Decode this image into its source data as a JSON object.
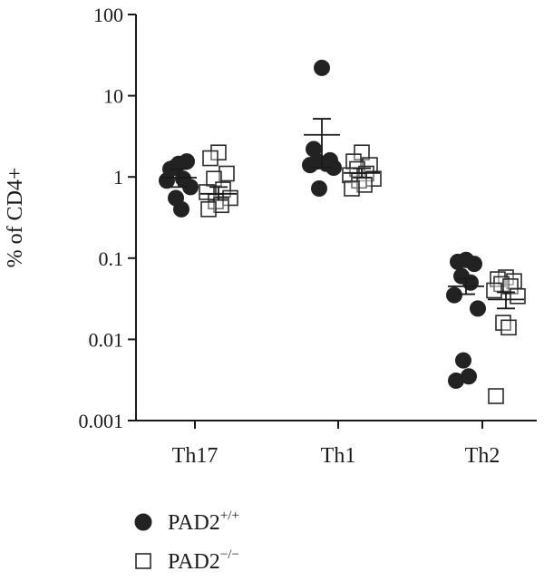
{
  "chart_data": {
    "type": "scatter",
    "y_scale": "log",
    "ylim": [
      0.001,
      100
    ],
    "ylabel": "% of CD4+",
    "y_ticks": [
      "0.001",
      "0.01",
      "0.1",
      "1",
      "10",
      "100"
    ],
    "y_tick_values": [
      0.001,
      0.01,
      0.1,
      1,
      10,
      100
    ],
    "categories": [
      "Th17",
      "Th1",
      "Th2"
    ],
    "grid": false,
    "legend_placement": "bottom-left",
    "series": [
      {
        "name": "PAD2",
        "superscript": "+/+",
        "marker": "filled-circle",
        "color": "#222222",
        "points": [
          [
            1.45,
            1.25,
            1.55,
            1.3,
            0.95,
            0.9,
            0.75,
            0.55,
            0.4
          ],
          [
            22,
            2.2,
            1.6,
            1.55,
            1.45,
            1.4,
            1.3,
            0.72
          ],
          [
            0.095,
            0.09,
            0.085,
            0.06,
            0.05,
            0.035,
            0.024,
            0.0055,
            0.0035,
            0.0031
          ]
        ],
        "means": [
          0.98,
          3.3,
          0.045
        ],
        "error": [
          [
            0.75,
            1.25
          ],
          [
            1.3,
            5.2
          ],
          [
            0.036,
            0.056
          ]
        ]
      },
      {
        "name": "PAD2",
        "superscript": "−/−",
        "marker": "open-square",
        "color": "#2a2a2a",
        "points": [
          [
            2.0,
            1.7,
            1.1,
            0.95,
            0.7,
            0.65,
            0.55,
            0.5,
            0.45,
            0.4
          ],
          [
            2.0,
            1.55,
            1.4,
            1.25,
            1.1,
            1.05,
            0.95,
            0.9,
            0.8,
            0.72
          ],
          [
            0.058,
            0.055,
            0.052,
            0.048,
            0.045,
            0.04,
            0.034,
            0.016,
            0.014,
            0.002
          ]
        ],
        "means": [
          0.62,
          1.12,
          0.031
        ],
        "error": [
          [
            0.52,
            0.75
          ],
          [
            0.98,
            1.28
          ],
          [
            0.024,
            0.038
          ]
        ]
      }
    ]
  },
  "legend": {
    "items": [
      {
        "label": "PAD2",
        "sup": "+/+",
        "marker": "filled-circle"
      },
      {
        "label": "PAD2",
        "sup": "−/−",
        "marker": "open-square"
      }
    ]
  }
}
